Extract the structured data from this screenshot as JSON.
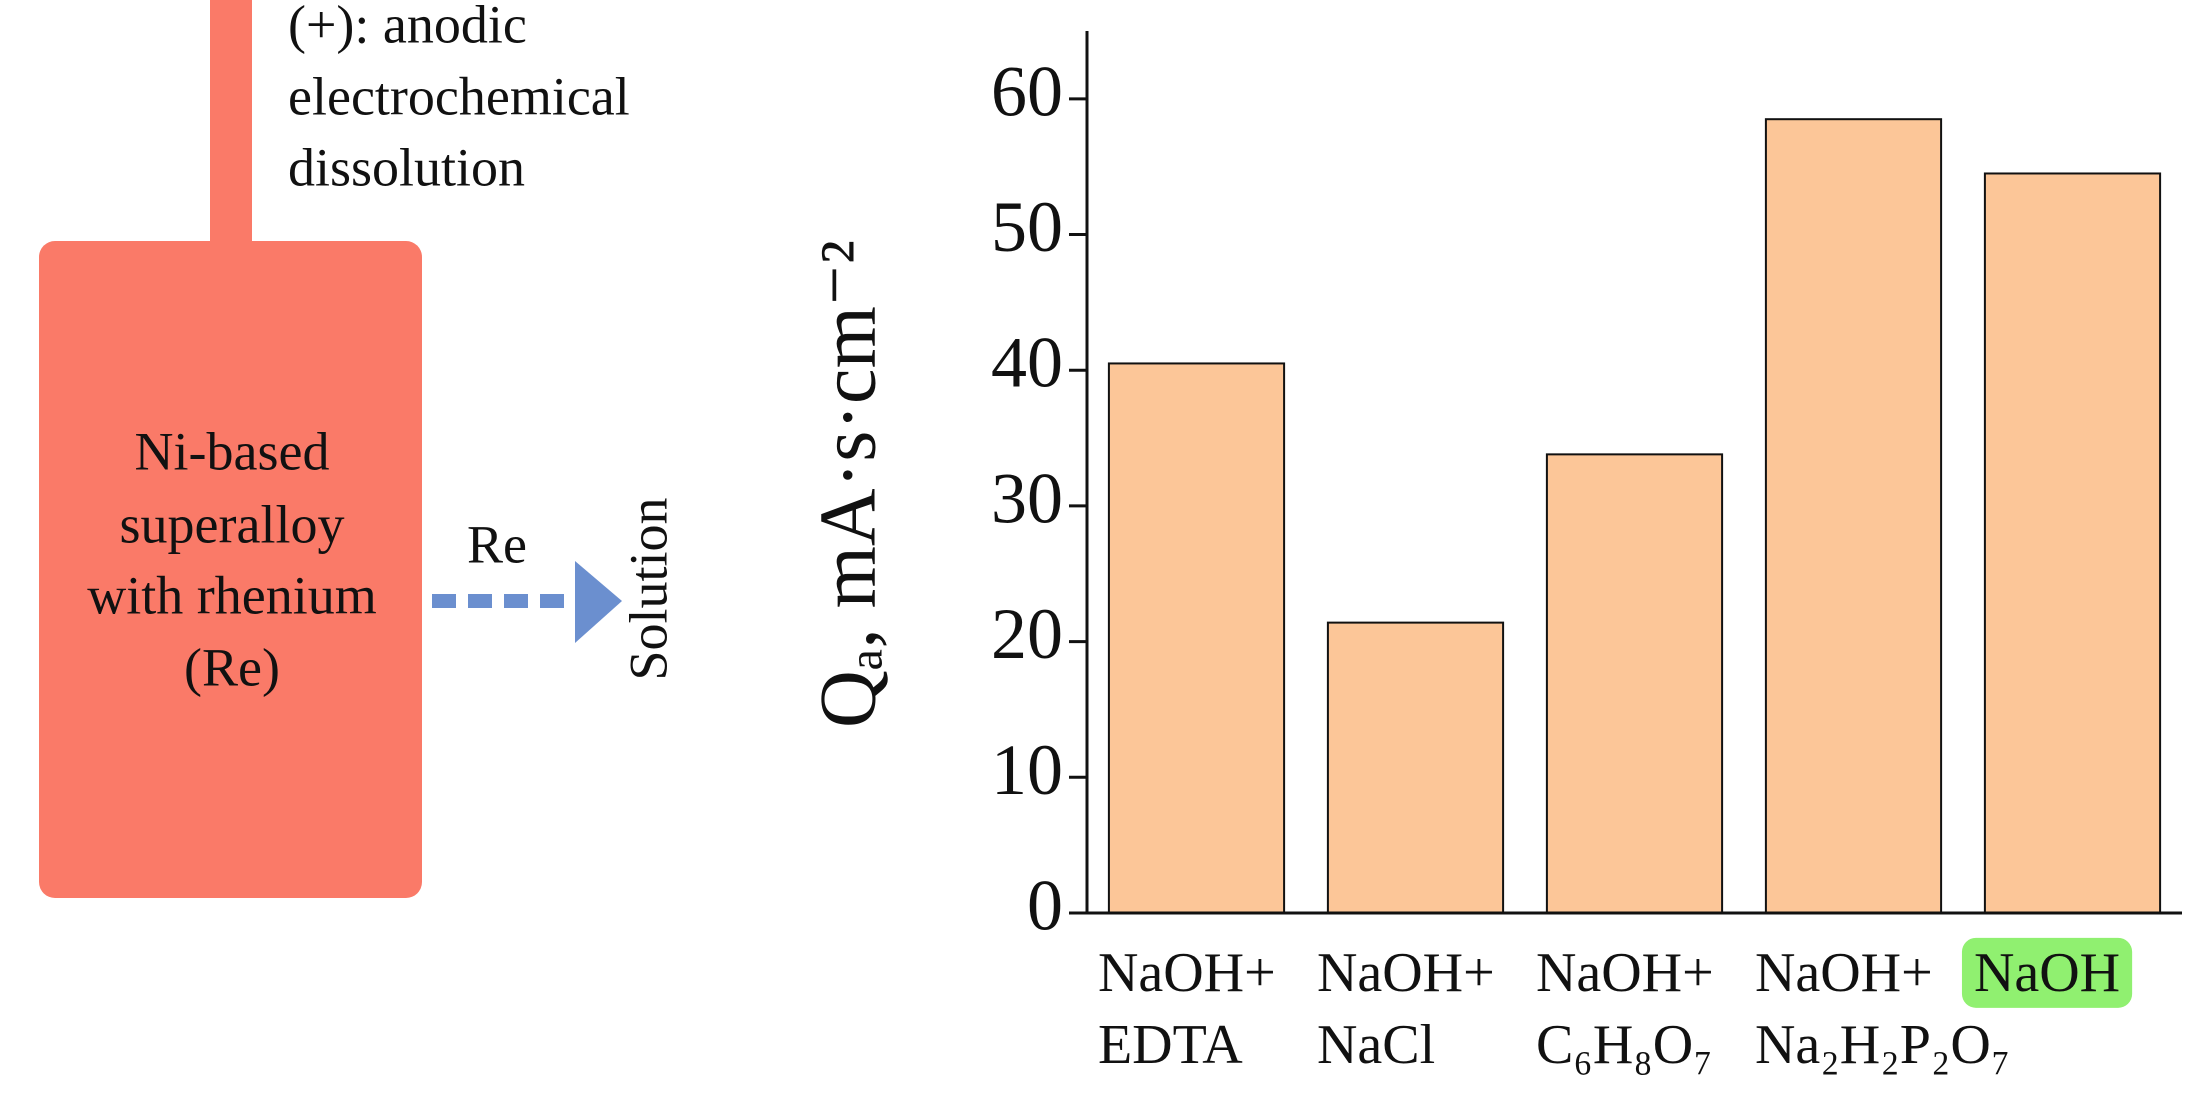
{
  "diagram": {
    "electrode_label": [
      "(+): anodic",
      "electrochemical",
      "dissolution"
    ],
    "box_label": [
      "Ni-based",
      "superalloy",
      "with rhenium",
      "(Re)"
    ],
    "arrow_label": "Re",
    "target_label": "Solution"
  },
  "chart_data": {
    "type": "bar",
    "ylabel": "Qₐ, mA·s·cm⁻²",
    "categories": [
      "NaOH+ EDTA",
      "NaOH+ NaCl",
      "NaOH+ C₆H₈O₇",
      "NaOH+ Na₂H₂P₂O₇",
      "NaOH"
    ],
    "values": [
      40.5,
      21.4,
      33.8,
      58.5,
      54.5
    ],
    "color": "#fcc698",
    "ylim": [
      0,
      65
    ],
    "yticks": [
      0,
      10,
      20,
      30,
      40,
      50,
      60
    ],
    "highlight": {
      "category": 4,
      "color": "#90f070"
    }
  }
}
